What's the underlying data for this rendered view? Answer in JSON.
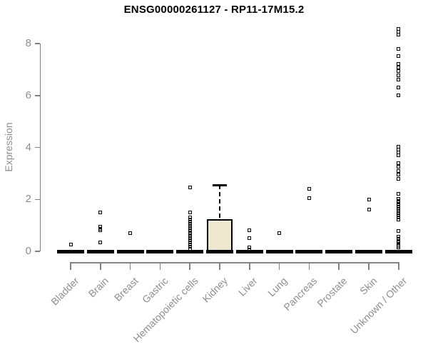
{
  "chart_data": {
    "type": "boxplot",
    "title": "ENSG00000261127 - RP11-17M15.2",
    "xlabel": "",
    "ylabel": "Expression",
    "ylim": [
      0,
      8.6
    ],
    "yticks": [
      0,
      2,
      4,
      6,
      8
    ],
    "grid": false,
    "legend": false,
    "point_shape": "open-square",
    "colors": {
      "box_fill": "#EDE8CE",
      "box_border": "#000000",
      "axis_line": "#828282",
      "axis_text": "#8e8e8e",
      "title_text": "#000000"
    },
    "categories": [
      "Bladder",
      "Brain",
      "Breast",
      "Gastric",
      "Hematopoietic cells",
      "Kidney",
      "Liver",
      "Lung",
      "Pancreas",
      "Prostate",
      "Skin",
      "Unknown / Other"
    ],
    "boxes": [
      {
        "category": "Bladder",
        "median": 0,
        "q1": 0,
        "q3": 0,
        "whisker_low": 0,
        "whisker_high": 0,
        "outliers": [
          0.25
        ]
      },
      {
        "category": "Brain",
        "median": 0,
        "q1": 0,
        "q3": 0,
        "whisker_low": 0,
        "whisker_high": 0,
        "outliers": [
          1.5,
          0.95,
          0.87,
          0.8,
          0.33
        ]
      },
      {
        "category": "Breast",
        "median": 0,
        "q1": 0,
        "q3": 0,
        "whisker_low": 0,
        "whisker_high": 0,
        "outliers": [
          0.7
        ]
      },
      {
        "category": "Gastric",
        "median": 0,
        "q1": 0,
        "q3": 0,
        "whisker_low": 0,
        "whisker_high": 0,
        "outliers": []
      },
      {
        "category": "Hematopoietic cells",
        "median": 0,
        "q1": 0,
        "q3": 0,
        "whisker_low": 0,
        "whisker_high": 0,
        "outliers": [
          2.47,
          1.5,
          1.3,
          1.22,
          1.14,
          1.06,
          0.98,
          0.9,
          0.82,
          0.74,
          0.66,
          0.58,
          0.5,
          0.42,
          0.34,
          0.26,
          0.18,
          0.1
        ]
      },
      {
        "category": "Kidney",
        "median": 0,
        "q1": 0,
        "q3": 1.25,
        "whisker_low": 0,
        "whisker_high": 2.55,
        "outliers": []
      },
      {
        "category": "Liver",
        "median": 0,
        "q1": 0,
        "q3": 0,
        "whisker_low": 0,
        "whisker_high": 0,
        "outliers": [
          0.82,
          0.52,
          0.15,
          0.08
        ]
      },
      {
        "category": "Lung",
        "median": 0,
        "q1": 0,
        "q3": 0,
        "whisker_low": 0,
        "whisker_high": 0,
        "outliers": [
          0.7
        ]
      },
      {
        "category": "Pancreas",
        "median": 0,
        "q1": 0,
        "q3": 0,
        "whisker_low": 0,
        "whisker_high": 0,
        "outliers": [
          2.4,
          2.05
        ]
      },
      {
        "category": "Prostate",
        "median": 0,
        "q1": 0,
        "q3": 0,
        "whisker_low": 0,
        "whisker_high": 0,
        "outliers": []
      },
      {
        "category": "Skin",
        "median": 0,
        "q1": 0,
        "q3": 0,
        "whisker_low": 0,
        "whisker_high": 0,
        "outliers": [
          2.0,
          1.6
        ]
      },
      {
        "category": "Unknown / Other",
        "median": 0,
        "q1": 0,
        "q3": 0,
        "whisker_low": 0,
        "whisker_high": 0,
        "outliers": [
          8.55,
          8.45,
          8.33,
          7.8,
          7.53,
          7.22,
          7.08,
          6.93,
          6.78,
          6.62,
          6.3,
          6.02,
          4.04,
          3.92,
          3.8,
          3.7,
          3.4,
          3.25,
          3.1,
          2.95,
          2.8,
          2.2,
          2.03,
          1.95,
          1.87,
          1.79,
          1.71,
          1.63,
          1.55,
          1.47,
          1.39,
          1.31,
          1.21,
          0.77,
          0.55,
          0.48,
          0.41,
          0.34,
          0.27,
          0.2,
          0.14
        ]
      }
    ]
  }
}
